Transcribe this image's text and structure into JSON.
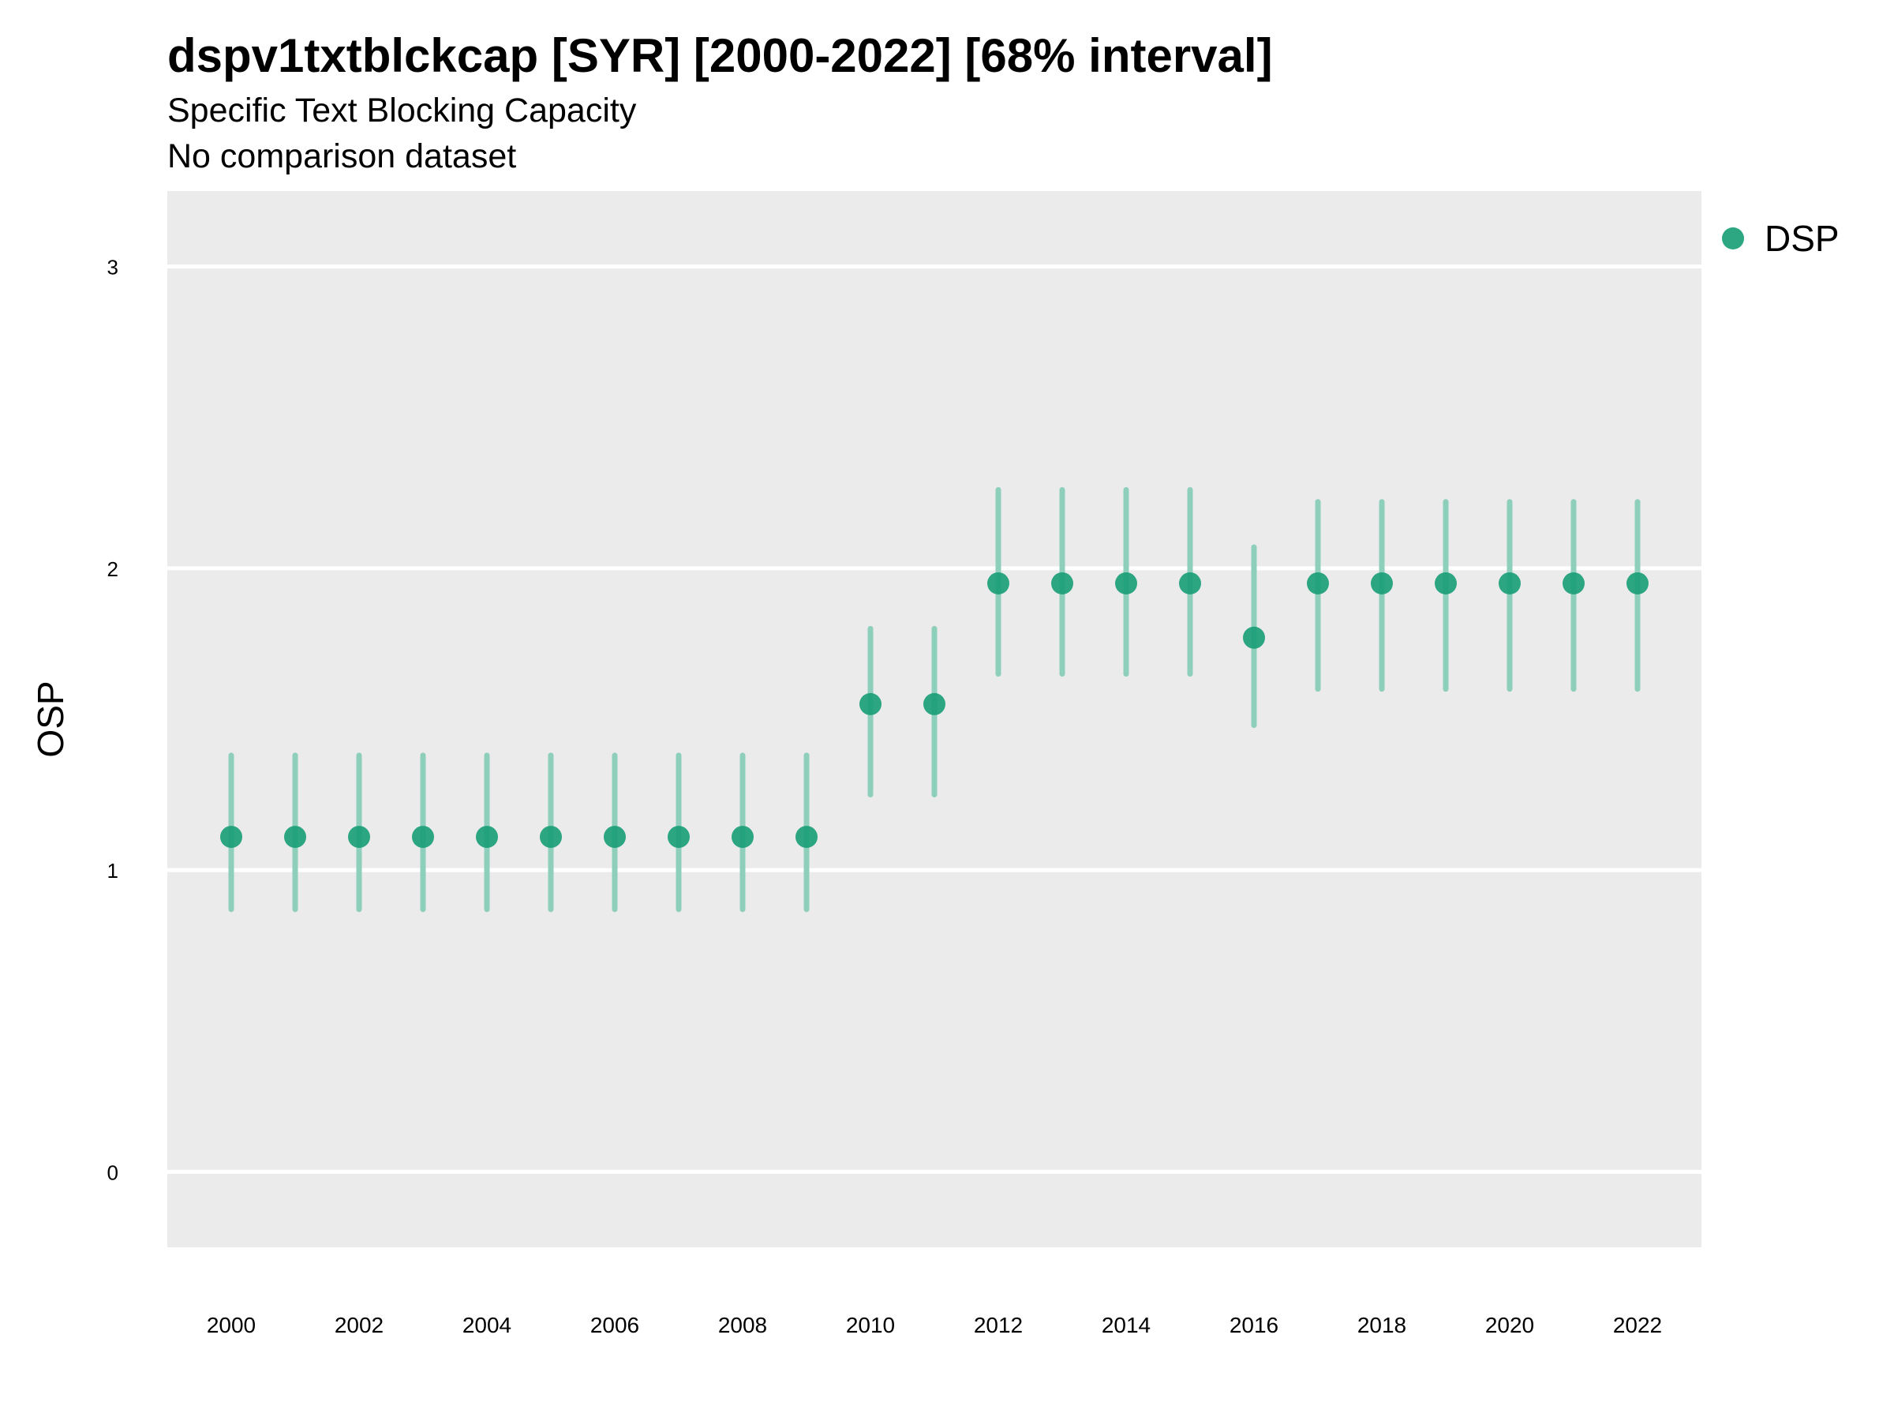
{
  "title": "dspv1txtblckcap [SYR] [2000-2022] [68% interval]",
  "subtitle": "Specific Text Blocking Capacity",
  "caption": "No comparison dataset",
  "colors": {
    "panel": "#ebebeb",
    "grid": "#ffffff",
    "point": "#1b9e77",
    "interval": "#8dcfbb"
  },
  "chart_data": {
    "type": "scatter",
    "ylabel": "OSP",
    "xlabel": "",
    "ylim": [
      -0.25,
      3.25
    ],
    "yticks": [
      0,
      1,
      2,
      3
    ],
    "xlim": [
      1999,
      2023
    ],
    "xticks": [
      2000,
      2002,
      2004,
      2006,
      2008,
      2010,
      2012,
      2014,
      2016,
      2018,
      2020,
      2022
    ],
    "grid": true,
    "legend_position": "top-right",
    "series": [
      {
        "name": "DSP",
        "x": [
          2000,
          2001,
          2002,
          2003,
          2004,
          2005,
          2006,
          2007,
          2008,
          2009,
          2010,
          2011,
          2012,
          2013,
          2014,
          2015,
          2016,
          2017,
          2018,
          2019,
          2020,
          2021,
          2022
        ],
        "y": [
          1.11,
          1.11,
          1.11,
          1.11,
          1.11,
          1.11,
          1.11,
          1.11,
          1.11,
          1.11,
          1.55,
          1.55,
          1.95,
          1.95,
          1.95,
          1.95,
          1.77,
          1.95,
          1.95,
          1.95,
          1.95,
          1.95,
          1.95
        ],
        "lower": [
          0.87,
          0.87,
          0.87,
          0.87,
          0.87,
          0.87,
          0.87,
          0.87,
          0.87,
          0.87,
          1.25,
          1.25,
          1.65,
          1.65,
          1.65,
          1.65,
          1.48,
          1.6,
          1.6,
          1.6,
          1.6,
          1.6,
          1.6
        ],
        "upper": [
          1.38,
          1.38,
          1.38,
          1.38,
          1.38,
          1.38,
          1.38,
          1.38,
          1.38,
          1.38,
          1.8,
          1.8,
          2.26,
          2.26,
          2.26,
          2.26,
          2.07,
          2.22,
          2.22,
          2.22,
          2.22,
          2.22,
          2.22
        ]
      }
    ]
  }
}
